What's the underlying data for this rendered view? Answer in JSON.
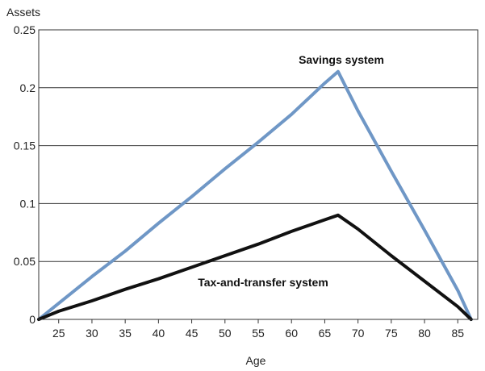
{
  "chart_data": {
    "type": "line",
    "ylabel": "Assets",
    "xlabel": "Age",
    "xlim": [
      22,
      88
    ],
    "ylim": [
      0,
      0.25
    ],
    "x_ticks": [
      25,
      30,
      35,
      40,
      45,
      50,
      55,
      60,
      65,
      70,
      75,
      80,
      85
    ],
    "y_ticks": [
      {
        "value": 0,
        "label": "0"
      },
      {
        "value": 0.05,
        "label": "0.05"
      },
      {
        "value": 0.1,
        "label": "0.1"
      },
      {
        "value": 0.15,
        "label": "0.15"
      },
      {
        "value": 0.2,
        "label": "0.2"
      },
      {
        "value": 0.25,
        "label": "0.25"
      }
    ],
    "grid": "horizontal",
    "series": [
      {
        "name": "Savings system",
        "color": "#6f97c6",
        "x": [
          22,
          30,
          35,
          40,
          45,
          50,
          55,
          60,
          65,
          67,
          70,
          75,
          80,
          85,
          87
        ],
        "y": [
          0,
          0.037,
          0.059,
          0.083,
          0.106,
          0.13,
          0.153,
          0.177,
          0.204,
          0.214,
          0.18,
          0.128,
          0.077,
          0.025,
          0
        ]
      },
      {
        "name": "Tax-and-transfer system",
        "color": "#111111",
        "x": [
          22,
          25,
          30,
          35,
          40,
          45,
          50,
          55,
          60,
          65,
          67,
          70,
          75,
          80,
          85,
          87
        ],
        "y": [
          0,
          0.007,
          0.016,
          0.026,
          0.035,
          0.045,
          0.055,
          0.065,
          0.076,
          0.086,
          0.09,
          0.078,
          0.055,
          0.033,
          0.011,
          0
        ]
      }
    ]
  }
}
